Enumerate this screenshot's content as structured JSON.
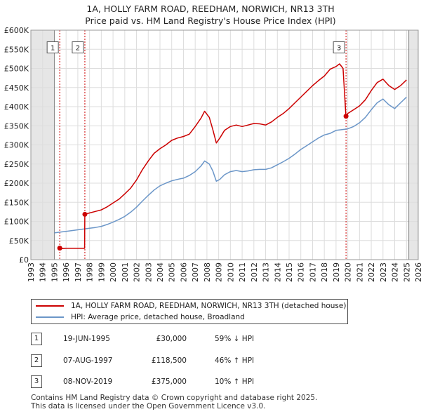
{
  "chart_data": {
    "type": "line",
    "title": "1A, HOLLY FARM ROAD, REEDHAM, NORWICH, NR13 3TH",
    "subtitle": "Price paid vs. HM Land Registry's House Price Index (HPI)",
    "xlim": [
      1993,
      2026
    ],
    "ylim": [
      0,
      600000
    ],
    "y_ticks": [
      0,
      50000,
      100000,
      150000,
      200000,
      250000,
      300000,
      350000,
      400000,
      450000,
      500000,
      550000,
      600000
    ],
    "y_tick_labels": [
      "£0",
      "£50K",
      "£100K",
      "£150K",
      "£200K",
      "£250K",
      "£300K",
      "£350K",
      "£400K",
      "£450K",
      "£500K",
      "£550K",
      "£600K"
    ],
    "x_ticks": [
      1993,
      1994,
      1995,
      1996,
      1997,
      1998,
      1999,
      2000,
      2001,
      2002,
      2003,
      2004,
      2005,
      2006,
      2007,
      2008,
      2009,
      2010,
      2011,
      2012,
      2013,
      2014,
      2015,
      2016,
      2017,
      2018,
      2019,
      2020,
      2021,
      2022,
      2023,
      2024,
      2025,
      2026
    ],
    "grid": true,
    "shaded_periods": [
      [
        1993,
        1995.0
      ],
      [
        2025.2,
        2026
      ]
    ],
    "series": [
      {
        "name": "1A, HOLLY FARM ROAD, REEDHAM, NORWICH, NR13 3TH (detached house)",
        "color": "#cc0000",
        "x": [
          1995.46,
          1995.7,
          1996.0,
          1996.5,
          1997.0,
          1997.58,
          1997.6,
          1998.0,
          1998.5,
          1999.0,
          1999.5,
          2000.0,
          2000.5,
          2001.0,
          2001.5,
          2002.0,
          2002.5,
          2003.0,
          2003.5,
          2004.0,
          2004.5,
          2005.0,
          2005.5,
          2006.0,
          2006.5,
          2007.0,
          2007.5,
          2007.8,
          2008.2,
          2008.5,
          2008.8,
          2009.1,
          2009.5,
          2010.0,
          2010.5,
          2011.0,
          2011.5,
          2012.0,
          2012.5,
          2013.0,
          2013.5,
          2014.0,
          2014.5,
          2015.0,
          2015.5,
          2016.0,
          2016.5,
          2017.0,
          2017.5,
          2018.0,
          2018.5,
          2019.0,
          2019.3,
          2019.6,
          2019.84,
          2020.0,
          2020.5,
          2021.0,
          2021.5,
          2022.0,
          2022.5,
          2023.0,
          2023.5,
          2024.0,
          2024.5,
          2025.0
        ],
        "y": [
          30000,
          29000,
          29500,
          29500,
          29500,
          29500,
          118500,
          122000,
          126000,
          130000,
          138000,
          148000,
          158000,
          172000,
          187000,
          208000,
          235000,
          258000,
          278000,
          290000,
          300000,
          312000,
          318000,
          322000,
          328000,
          348000,
          370000,
          388000,
          372000,
          340000,
          305000,
          318000,
          338000,
          348000,
          352000,
          348000,
          352000,
          356000,
          355000,
          352000,
          360000,
          372000,
          382000,
          395000,
          410000,
          425000,
          440000,
          455000,
          468000,
          480000,
          498000,
          505000,
          512000,
          500000,
          375000,
          382000,
          392000,
          402000,
          418000,
          442000,
          463000,
          472000,
          455000,
          445000,
          455000,
          470000
        ]
      },
      {
        "name": "HPI: Average price, detached house, Broadland",
        "color": "#6b96c8",
        "x": [
          1995.0,
          1995.5,
          1996.0,
          1996.5,
          1997.0,
          1997.5,
          1998.0,
          1998.5,
          1999.0,
          1999.5,
          2000.0,
          2000.5,
          2001.0,
          2001.5,
          2002.0,
          2002.5,
          2003.0,
          2003.5,
          2004.0,
          2004.5,
          2005.0,
          2005.5,
          2006.0,
          2006.5,
          2007.0,
          2007.5,
          2007.8,
          2008.2,
          2008.5,
          2008.8,
          2009.1,
          2009.5,
          2010.0,
          2010.5,
          2011.0,
          2011.5,
          2012.0,
          2012.5,
          2013.0,
          2013.5,
          2014.0,
          2014.5,
          2015.0,
          2015.5,
          2016.0,
          2016.5,
          2017.0,
          2017.5,
          2018.0,
          2018.5,
          2019.0,
          2019.5,
          2020.0,
          2020.5,
          2021.0,
          2021.5,
          2022.0,
          2022.5,
          2023.0,
          2023.5,
          2024.0,
          2024.5,
          2025.0
        ],
        "y": [
          70000,
          72000,
          74000,
          76000,
          78000,
          80000,
          82000,
          84000,
          87000,
          92000,
          98000,
          105000,
          113000,
          124000,
          137000,
          153000,
          168000,
          182000,
          193000,
          200000,
          206000,
          210000,
          213000,
          220000,
          230000,
          245000,
          258000,
          250000,
          232000,
          205000,
          210000,
          222000,
          230000,
          233000,
          230000,
          232000,
          235000,
          236000,
          236000,
          240000,
          248000,
          256000,
          265000,
          276000,
          288000,
          298000,
          308000,
          318000,
          326000,
          330000,
          338000,
          340000,
          342000,
          348000,
          358000,
          372000,
          392000,
          410000,
          420000,
          405000,
          395000,
          410000,
          425000
        ]
      }
    ],
    "sale_markers": [
      {
        "label": "1",
        "x": 1995.46,
        "y": 30000
      },
      {
        "label": "2",
        "x": 1997.6,
        "y": 118500
      },
      {
        "label": "3",
        "x": 2019.85,
        "y": 375000
      }
    ]
  },
  "legend": {
    "property_label": "1A, HOLLY FARM ROAD, REEDHAM, NORWICH, NR13 3TH (detached house)",
    "hpi_label": "HPI: Average price, detached house, Broadland"
  },
  "transactions": [
    {
      "num": "1",
      "date": "19-JUN-1995",
      "price": "£30,000",
      "hpi": "59% ↓ HPI"
    },
    {
      "num": "2",
      "date": "07-AUG-1997",
      "price": "£118,500",
      "hpi": "46% ↑ HPI"
    },
    {
      "num": "3",
      "date": "08-NOV-2019",
      "price": "£375,000",
      "hpi": "10% ↑ HPI"
    }
  ],
  "footer": {
    "line1": "Contains HM Land Registry data © Crown copyright and database right 2025.",
    "line2": "This data is licensed under the Open Government Licence v3.0."
  }
}
